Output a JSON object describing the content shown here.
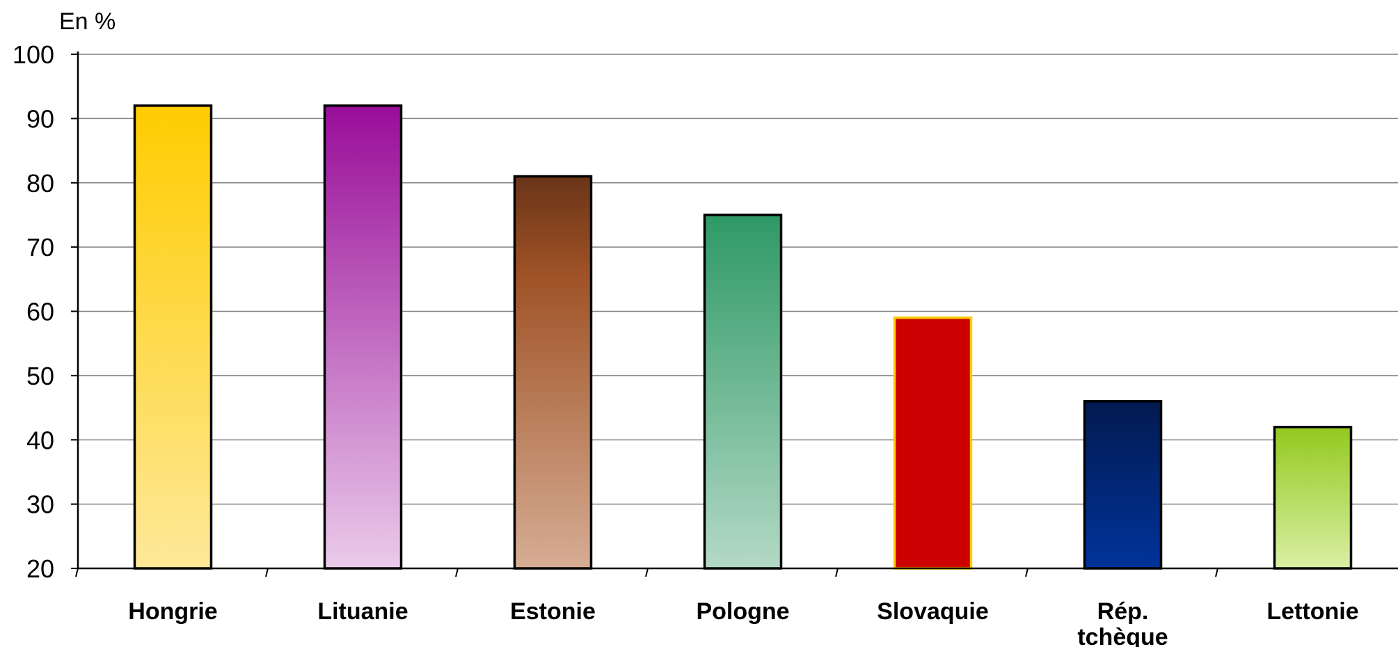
{
  "chart_data": {
    "type": "bar",
    "ylabel": "En %",
    "categories": [
      "Hongrie",
      "Lituanie",
      "Estonie",
      "Pologne",
      "Slovaquie",
      "Rép. tchèque",
      "Lettonie"
    ],
    "category_lines": [
      [
        "Hongrie"
      ],
      [
        "Lituanie"
      ],
      [
        "Estonie"
      ],
      [
        "Pologne"
      ],
      [
        "Slovaquie"
      ],
      [
        "Rép.",
        "tchèque"
      ],
      [
        "Lettonie"
      ]
    ],
    "values": [
      92,
      92,
      81,
      75,
      59,
      46,
      42
    ],
    "ylim": [
      20,
      100
    ],
    "yticks": [
      20,
      30,
      40,
      50,
      60,
      70,
      80,
      90,
      100
    ],
    "grid": true,
    "bar_fills": [
      {
        "top": "#ffcc00",
        "bottom": "#fee899"
      },
      {
        "top": "#990d99",
        "bottom": "#eacbea"
      },
      {
        "top": "#6a3418",
        "mid": "#9f5226",
        "bottom": "#d6ad94"
      },
      {
        "top": "#2e9966",
        "bottom": "#b3d9c5"
      },
      {
        "top": "#cc0000",
        "bottom": "#cc0000"
      },
      {
        "top": "#021a50",
        "bottom": "#00339a"
      },
      {
        "top": "#93c91f",
        "bottom": "#d9efa3"
      }
    ],
    "bar_strokes": [
      "#000000",
      "#000000",
      "#000000",
      "#000000",
      "#ffcc00",
      "#000000",
      "#000000"
    ]
  }
}
